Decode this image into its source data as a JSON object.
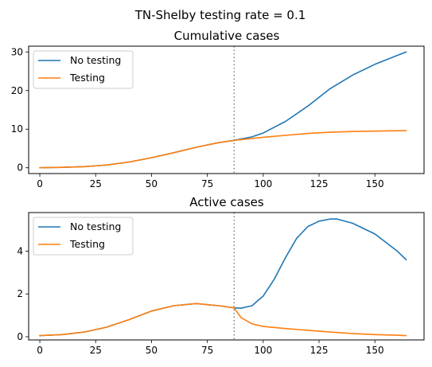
{
  "suptitle": "TN-Shelby testing rate = 0.1",
  "colors": {
    "no_testing": "#1f77b4",
    "testing": "#ff7f0e",
    "vline": "#7f7f7f"
  },
  "chart_data": [
    {
      "type": "line",
      "title": "Cumulative cases",
      "xlabel": "",
      "ylabel": "",
      "xlim": [
        -5,
        172
      ],
      "ylim": [
        -1.5,
        31.5
      ],
      "xticks": [
        0,
        25,
        50,
        75,
        100,
        125,
        150
      ],
      "yticks": [
        0,
        10,
        20,
        30
      ],
      "vline_x": 87,
      "legend": "top-left",
      "series": [
        {
          "name": "No testing",
          "x": [
            0,
            10,
            20,
            30,
            40,
            50,
            60,
            70,
            80,
            87,
            95,
            100,
            110,
            120,
            130,
            140,
            150,
            160,
            164
          ],
          "y": [
            0,
            0.1,
            0.3,
            0.7,
            1.5,
            2.6,
            3.9,
            5.3,
            6.5,
            7.1,
            8.0,
            9.0,
            12.0,
            16.0,
            20.5,
            24.0,
            26.8,
            29.1,
            30.0
          ]
        },
        {
          "name": "Testing",
          "x": [
            0,
            10,
            20,
            30,
            40,
            50,
            60,
            70,
            80,
            87,
            95,
            100,
            110,
            120,
            130,
            140,
            150,
            160,
            164
          ],
          "y": [
            0,
            0.1,
            0.3,
            0.7,
            1.5,
            2.6,
            3.9,
            5.3,
            6.5,
            7.1,
            7.6,
            7.9,
            8.4,
            8.9,
            9.2,
            9.4,
            9.5,
            9.6,
            9.6
          ]
        }
      ]
    },
    {
      "type": "line",
      "title": "Active cases",
      "xlabel": "",
      "ylabel": "",
      "xlim": [
        -5,
        172
      ],
      "ylim": [
        -0.15,
        5.8
      ],
      "xticks": [
        0,
        25,
        50,
        75,
        100,
        125,
        150
      ],
      "yticks": [
        0,
        2,
        4
      ],
      "vline_x": 87,
      "legend": "top-left",
      "series": [
        {
          "name": "No testing",
          "x": [
            0,
            10,
            20,
            30,
            40,
            50,
            60,
            70,
            80,
            87,
            90,
            95,
            100,
            105,
            110,
            115,
            120,
            125,
            130,
            133,
            140,
            150,
            160,
            164
          ],
          "y": [
            0.05,
            0.1,
            0.22,
            0.45,
            0.8,
            1.2,
            1.45,
            1.55,
            1.45,
            1.35,
            1.33,
            1.45,
            1.9,
            2.7,
            3.7,
            4.6,
            5.15,
            5.4,
            5.5,
            5.5,
            5.3,
            4.8,
            4.0,
            3.6
          ]
        },
        {
          "name": "Testing",
          "x": [
            0,
            10,
            20,
            30,
            40,
            50,
            60,
            70,
            80,
            87,
            90,
            95,
            100,
            110,
            120,
            130,
            140,
            150,
            160,
            164
          ],
          "y": [
            0.05,
            0.1,
            0.22,
            0.45,
            0.8,
            1.2,
            1.45,
            1.55,
            1.45,
            1.35,
            0.9,
            0.6,
            0.48,
            0.38,
            0.3,
            0.22,
            0.15,
            0.1,
            0.07,
            0.05
          ]
        }
      ]
    }
  ]
}
